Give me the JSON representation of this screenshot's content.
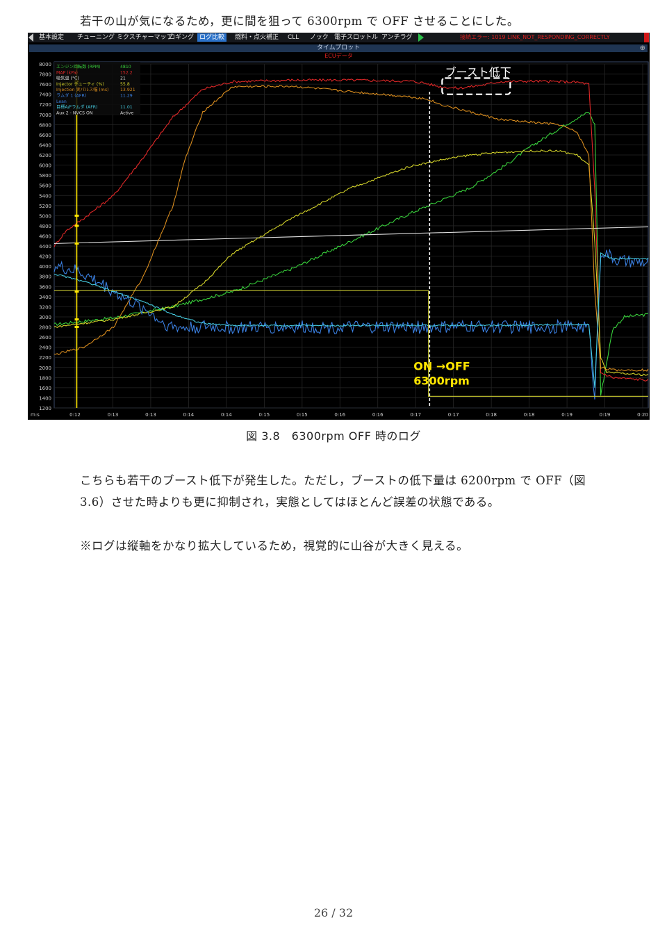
{
  "intro": "若干の山が気になるため，更に間を狙って 6300rpm で OFF させることにした。",
  "figure": {
    "tabs": [
      "基本設定",
      "チューニング",
      "ミクスチャーマップ",
      "ロギング",
      "ログ比較",
      "燃料・点火補正",
      "CLL",
      "ノック",
      "電子スロットル",
      "アンチラグ"
    ],
    "active_tab": "ログ比較",
    "error_text": "接続エラー: 1019 LINK_NOT_RESPONDING_CORRECTLY",
    "window_title": "タイムプロット",
    "subtitle": "ECUデータ",
    "legend": [
      {
        "name": "エンジン回転数 (RPM)",
        "value": "4810",
        "color": "#39d13c"
      },
      {
        "name": "MAP (kPa)",
        "value": "152.2",
        "color": "#e02828"
      },
      {
        "name": "吸気温 (°C)",
        "value": "21",
        "color": "#e0e0e0"
      },
      {
        "name": "Injector デューティ (%)",
        "value": "55.8",
        "color": "#d2d22a"
      },
      {
        "name": "Injection 実パルス幅 (ms)",
        "value": "13.921",
        "color": "#d88c1e"
      },
      {
        "name": "ラムダ 1 (AFR)",
        "value": "11.29",
        "color": "#3a7fe0"
      },
      {
        "name": "Lean",
        "value": "",
        "color": "#3a7fe0"
      },
      {
        "name": "目標A/Fラムダ (AFR)",
        "value": "11.01",
        "color": "#45c8dc"
      },
      {
        "name": "Aux 2 - NVCS ON",
        "value": "Active",
        "color": "#d8d8d8"
      }
    ],
    "callout_boost": "ブースト低下",
    "callout_on_off": "ON →OFF",
    "callout_rpm": "6300rpm",
    "ms_label": "m:s"
  },
  "chart_data": {
    "type": "line",
    "ylim": [
      1200,
      8000
    ],
    "yticks": [
      8000,
      7800,
      7600,
      7400,
      7200,
      7000,
      6800,
      6600,
      6400,
      6200,
      6000,
      5800,
      5600,
      5400,
      5200,
      5000,
      4800,
      4600,
      4400,
      4200,
      4000,
      3800,
      3600,
      3400,
      3200,
      3000,
      2800,
      2600,
      2400,
      2200,
      2000,
      1800,
      1600,
      1400,
      1200
    ],
    "xticks": [
      "0:12",
      "0:13",
      "0:13",
      "0:14",
      "0:14",
      "0:15",
      "0:15",
      "0:16",
      "0:16",
      "0:17",
      "0:17",
      "0:18",
      "0:18",
      "0:19",
      "0:19",
      "0:20"
    ],
    "series": [
      {
        "name": "エンジン回転数 (RPM)",
        "color": "#39d13c",
        "x": [
          0,
          10,
          20,
          30,
          40,
          50,
          60,
          70,
          76,
          80,
          85,
          88,
          90,
          91,
          92,
          94,
          96,
          100
        ],
        "y": [
          2850,
          2980,
          3200,
          3500,
          3950,
          4500,
          5050,
          5550,
          6000,
          6350,
          6720,
          6930,
          7050,
          6800,
          1450,
          2750,
          3000,
          3050
        ]
      },
      {
        "name": "MAP (kPa)",
        "color": "#e02828",
        "x": [
          0,
          2,
          5,
          10,
          15,
          20,
          25,
          30,
          40,
          50,
          55,
          60,
          62,
          65,
          68,
          72,
          75,
          80,
          85,
          88,
          90,
          91,
          92,
          94,
          100
        ],
        "y": [
          4400,
          4700,
          4950,
          5400,
          6150,
          6950,
          7500,
          7650,
          7680,
          7680,
          7670,
          7660,
          7630,
          7550,
          7520,
          7580,
          7650,
          7660,
          7650,
          7640,
          7600,
          5500,
          1900,
          1800,
          1750
        ]
      },
      {
        "name": "吸気温 (°C)",
        "color": "#e0e0e0",
        "x": [
          0,
          100
        ],
        "y": [
          4450,
          4780
        ]
      },
      {
        "name": "Injector デューティ (%)",
        "color": "#d2d22a",
        "x": [
          0,
          10,
          20,
          25,
          30,
          40,
          50,
          60,
          63,
          65,
          70,
          75,
          80,
          85,
          88,
          90,
          91,
          92,
          93,
          100
        ],
        "y": [
          2800,
          2950,
          3200,
          3650,
          4250,
          4950,
          5550,
          5980,
          6050,
          6100,
          6200,
          6250,
          6280,
          6280,
          6200,
          6000,
          4500,
          2200,
          1900,
          1850
        ]
      },
      {
        "name": "Injection 実パルス幅 (ms)",
        "color": "#d88c1e",
        "x": [
          0,
          5,
          10,
          15,
          20,
          22,
          25,
          30,
          40,
          50,
          60,
          63,
          65,
          70,
          75,
          80,
          85,
          88,
          90,
          91,
          92,
          94,
          100
        ],
        "y": [
          2250,
          2400,
          2800,
          3800,
          5200,
          6100,
          7050,
          7550,
          7560,
          7450,
          7350,
          7300,
          7200,
          7050,
          6900,
          6850,
          6800,
          6650,
          6200,
          3500,
          2000,
          1950,
          1950
        ]
      },
      {
        "name": "ラムダ 1 (AFR)",
        "color": "#3a7fe0",
        "x": [
          0,
          4,
          8,
          12,
          16,
          18,
          20,
          22,
          25,
          30,
          40,
          50,
          60,
          65,
          70,
          80,
          88,
          90,
          91,
          92,
          95,
          100
        ],
        "y": [
          4000,
          3900,
          3650,
          3350,
          3100,
          2900,
          2800,
          2780,
          2810,
          2780,
          2800,
          2790,
          2800,
          2790,
          2810,
          2800,
          2810,
          2800,
          1400,
          4300,
          4100,
          4050
        ]
      },
      {
        "name": "目標A/Fラムダ (AFR)",
        "color": "#45c8dc",
        "x": [
          0,
          5,
          10,
          15,
          20,
          25,
          30,
          50,
          70,
          90,
          91,
          92,
          94,
          100
        ],
        "y": [
          3850,
          3700,
          3500,
          3300,
          3050,
          2870,
          2830,
          2830,
          2830,
          2850,
          1600,
          4250,
          4150,
          4150
        ]
      },
      {
        "name": "Aux 2 - NVCS ON",
        "color": "#c8c830",
        "x": [
          0,
          63,
          63,
          100
        ],
        "y": [
          3520,
          3520,
          1430,
          1430
        ]
      }
    ]
  },
  "caption": "図 3.8　6300rpm OFF 時のログ",
  "paragraph_line1": "こちらも若干のブースト低下が発生した。ただし，ブーストの低下量は 6200rpm で OFF（図",
  "paragraph_line2": "3.6）させた時よりも更に抑制され，実態としてはほとんど誤差の状態である。",
  "note": "※ログは縦軸をかなり拡大しているため，視覚的に山谷が大きく見える。",
  "page_number": "26 / 32"
}
